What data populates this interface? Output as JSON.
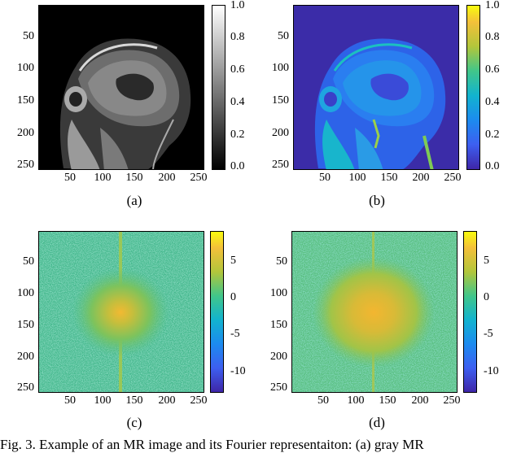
{
  "panels": [
    {
      "id": "a",
      "sublabel": "(a)",
      "image": "brain-mri-sagittal-grayscale",
      "yticks": [
        "50",
        "100",
        "150",
        "200",
        "250"
      ],
      "xticks": [
        "50",
        "100",
        "150",
        "200",
        "250"
      ],
      "colorbar": {
        "colormap": "gray",
        "ticks": [
          "1.0",
          "0.8",
          "0.6",
          "0.4",
          "0.2",
          "0.0"
        ]
      }
    },
    {
      "id": "b",
      "sublabel": "(b)",
      "image": "brain-mri-sagittal-parula",
      "yticks": [
        "50",
        "100",
        "150",
        "200",
        "250"
      ],
      "xticks": [
        "50",
        "100",
        "150",
        "200",
        "250"
      ],
      "colorbar": {
        "colormap": "parula",
        "ticks": [
          "1.0",
          "0.8",
          "0.6",
          "0.4",
          "0.2",
          "0.0"
        ]
      }
    },
    {
      "id": "c",
      "sublabel": "(c)",
      "image": "fourier-log-magnitude-spectrum",
      "yticks": [
        "50",
        "100",
        "150",
        "200",
        "250"
      ],
      "xticks": [
        "50",
        "100",
        "150",
        "200",
        "250"
      ],
      "colorbar": {
        "colormap": "parula",
        "ticks": [
          "5",
          "0",
          "-5",
          "-10"
        ]
      }
    },
    {
      "id": "d",
      "sublabel": "(d)",
      "image": "fourier-log-magnitude-spectrum",
      "yticks": [
        "50",
        "100",
        "150",
        "200",
        "250"
      ],
      "xticks": [
        "50",
        "100",
        "150",
        "200",
        "250"
      ],
      "colorbar": {
        "colormap": "parula",
        "ticks": [
          "5",
          "0",
          "-5",
          "-10"
        ]
      }
    }
  ],
  "caption": "Fig. 3.  Example of an MR image and its Fourier representaiton: (a) gray MR"
}
